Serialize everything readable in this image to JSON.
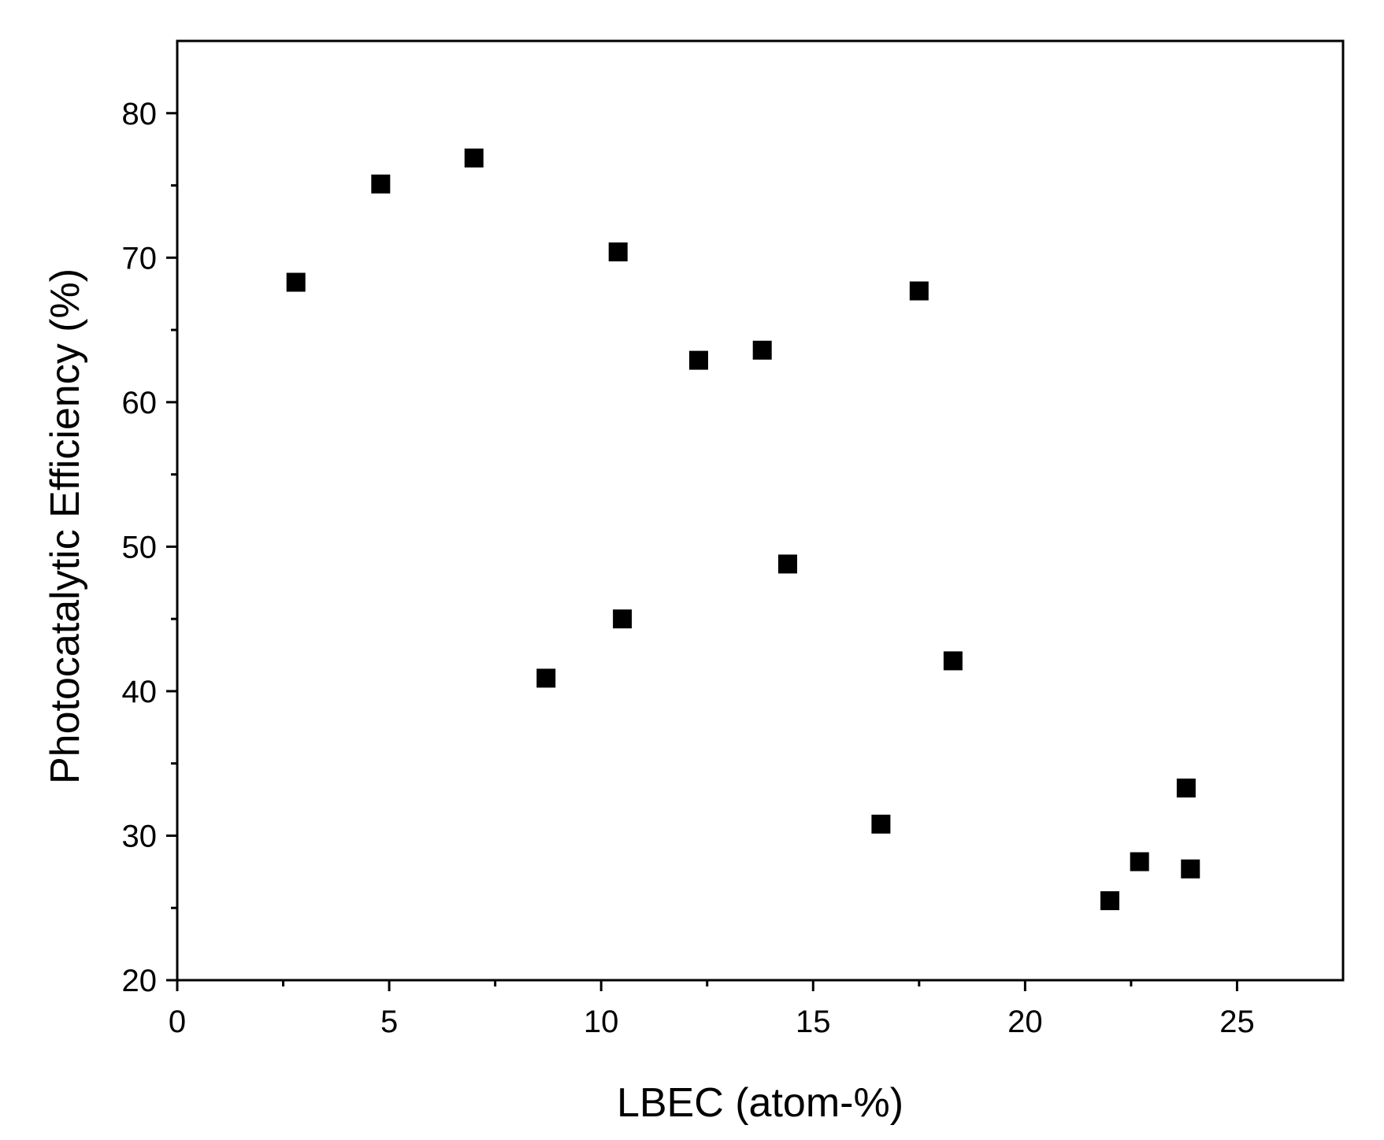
{
  "chart_data": {
    "type": "scatter",
    "title": "",
    "xlabel": "LBEC (atom-%)",
    "ylabel": "Photocatalytic Efficiency (%)",
    "xlim": [
      0,
      27.5
    ],
    "ylim": [
      20,
      85
    ],
    "x_ticks": [
      0,
      5,
      10,
      15,
      20,
      25
    ],
    "x_tick_labels": [
      "0",
      "5",
      "10",
      "15",
      "20",
      "25"
    ],
    "y_ticks": [
      20,
      30,
      40,
      50,
      60,
      70,
      80
    ],
    "y_tick_labels": [
      "20",
      "30",
      "40",
      "50",
      "60",
      "70",
      "80"
    ],
    "x_minor_ticks": [
      2.5,
      7.5,
      12.5,
      17.5,
      22.5
    ],
    "y_minor_ticks": [
      25,
      35,
      45,
      55,
      65,
      75
    ],
    "grid": false,
    "marker": "square",
    "marker_color": "#000000",
    "series": [
      {
        "x": [
          2.8,
          4.8,
          7.0,
          8.7,
          10.4,
          10.5,
          12.3,
          13.8,
          14.4,
          16.6,
          17.5,
          18.3,
          22.0,
          22.7,
          23.8,
          23.9
        ],
        "y": [
          68.3,
          75.1,
          76.9,
          40.9,
          70.4,
          45.0,
          62.9,
          63.6,
          48.8,
          30.8,
          67.7,
          42.1,
          25.5,
          28.2,
          33.3,
          27.7
        ]
      }
    ]
  }
}
